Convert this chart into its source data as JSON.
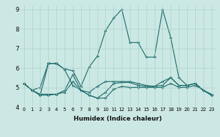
{
  "xlabel": "Humidex (Indice chaleur)",
  "xlim": [
    -0.5,
    23.5
  ],
  "ylim": [
    4,
    9.2
  ],
  "yticks": [
    4,
    5,
    6,
    7,
    8,
    9
  ],
  "xticks": [
    0,
    1,
    2,
    3,
    4,
    5,
    6,
    7,
    8,
    9,
    10,
    11,
    12,
    13,
    14,
    15,
    16,
    17,
    18,
    19,
    20,
    21,
    22,
    23
  ],
  "bg_color": "#cce8e4",
  "line_color": "#1a6b6b",
  "grid_color": "#aacfca",
  "series": [
    {
      "x": [
        0,
        1,
        2,
        3,
        4,
        5,
        6,
        7,
        8,
        9,
        10,
        11,
        12,
        13,
        14,
        15,
        16,
        17,
        18,
        19,
        20,
        21,
        22,
        23
      ],
      "y": [
        5.2,
        4.85,
        5.0,
        6.25,
        6.2,
        5.95,
        5.85,
        5.05,
        6.05,
        6.6,
        7.9,
        8.55,
        9.0,
        7.3,
        7.3,
        6.55,
        6.55,
        9.0,
        7.55,
        5.5,
        5.1,
        5.2,
        4.85,
        4.6
      ]
    },
    {
      "x": [
        0,
        1,
        2,
        3,
        4,
        5,
        6,
        7,
        8,
        9,
        10,
        11,
        12,
        13,
        14,
        15,
        16,
        17,
        18,
        19,
        20,
        21,
        22,
        23
      ],
      "y": [
        5.2,
        4.85,
        4.65,
        4.65,
        4.65,
        4.75,
        5.3,
        4.85,
        4.75,
        5.05,
        5.3,
        5.3,
        5.3,
        5.3,
        5.2,
        5.1,
        5.05,
        5.1,
        5.5,
        5.1,
        5.1,
        5.2,
        4.85,
        4.65
      ]
    },
    {
      "x": [
        0,
        1,
        2,
        3,
        4,
        5,
        6,
        7,
        8,
        9,
        10,
        11,
        12,
        13,
        14,
        15,
        16,
        17,
        18,
        19,
        20,
        21,
        22,
        23
      ],
      "y": [
        5.2,
        4.85,
        4.6,
        4.6,
        4.65,
        4.85,
        5.65,
        4.85,
        4.6,
        4.45,
        4.45,
        4.9,
        5.05,
        5.0,
        5.0,
        5.0,
        5.0,
        5.0,
        5.2,
        5.0,
        5.0,
        5.1,
        4.85,
        4.6
      ]
    },
    {
      "x": [
        0,
        1,
        2,
        3,
        4,
        5,
        6,
        7,
        8,
        9,
        10,
        11,
        12,
        13,
        14,
        15,
        16,
        17,
        18,
        19,
        20,
        21,
        22,
        23
      ],
      "y": [
        5.2,
        4.85,
        4.6,
        6.2,
        6.25,
        5.9,
        5.1,
        4.85,
        4.6,
        4.45,
        4.75,
        5.2,
        5.25,
        5.25,
        5.1,
        5.05,
        5.05,
        5.3,
        5.5,
        5.1,
        5.1,
        5.2,
        4.85,
        4.6
      ]
    }
  ]
}
